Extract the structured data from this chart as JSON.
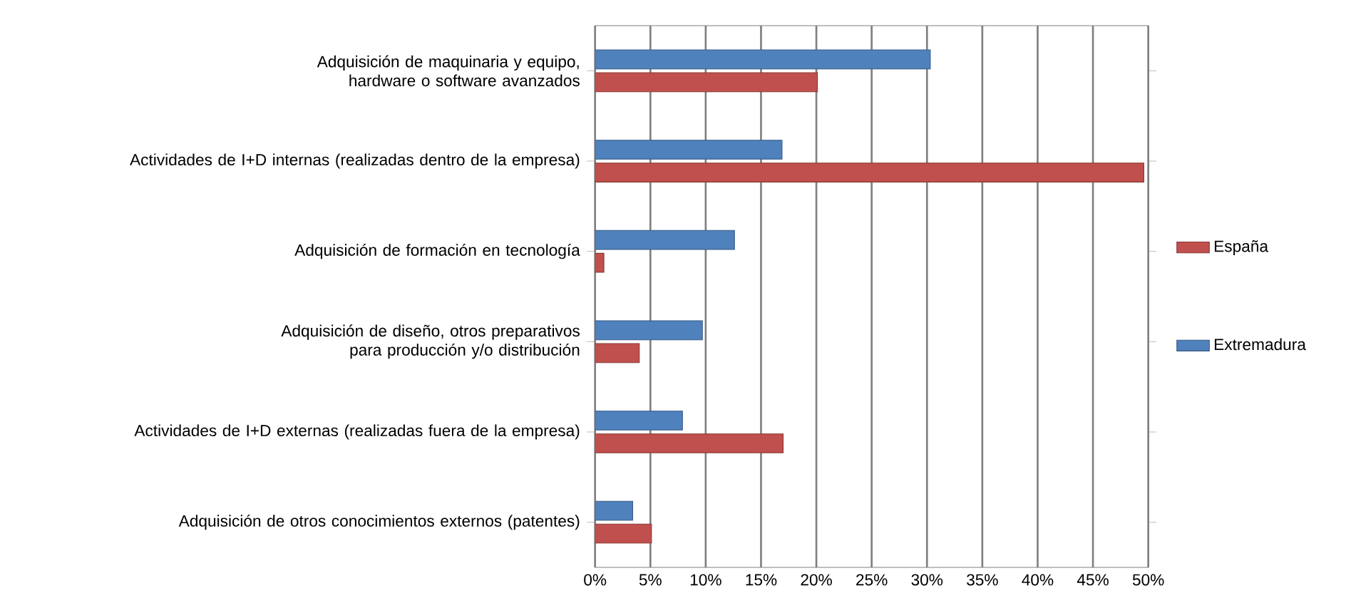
{
  "chart_data": {
    "type": "bar",
    "orientation": "horizontal",
    "categories": [
      "Adquisición de maquinaria y equipo, hardware o software avanzados",
      "Actividades de I+D internas (realizadas dentro de la empresa)",
      "Adquisición de formación en tecnología",
      "Adquisición de diseño, otros preparativos para producción y/o distribución",
      "Actividades de I+D externas (realizadas fuera de la empresa)",
      "Adquisición de otros conocimientos externos (patentes)"
    ],
    "series": [
      {
        "name": "España",
        "color": "#c0504d",
        "values": [
          20.1,
          49.6,
          0.8,
          4.0,
          17.0,
          5.1
        ]
      },
      {
        "name": "Extremadura",
        "color": "#4f81bd",
        "values": [
          30.3,
          16.9,
          12.6,
          9.7,
          7.9,
          3.4
        ]
      }
    ],
    "xlim": [
      0,
      50
    ],
    "xticks": [
      {
        "value": 0,
        "label": "0%"
      },
      {
        "value": 5,
        "label": "5%"
      },
      {
        "value": 10,
        "label": "10%"
      },
      {
        "value": 15,
        "label": "15%"
      },
      {
        "value": 20,
        "label": "20%"
      },
      {
        "value": 25,
        "label": "25%"
      },
      {
        "value": 30,
        "label": "30%"
      },
      {
        "value": 35,
        "label": "35%"
      },
      {
        "value": 40,
        "label": "40%"
      },
      {
        "value": 45,
        "label": "45%"
      },
      {
        "value": 50,
        "label": "50%"
      }
    ],
    "grid": "x",
    "legend": "right"
  }
}
